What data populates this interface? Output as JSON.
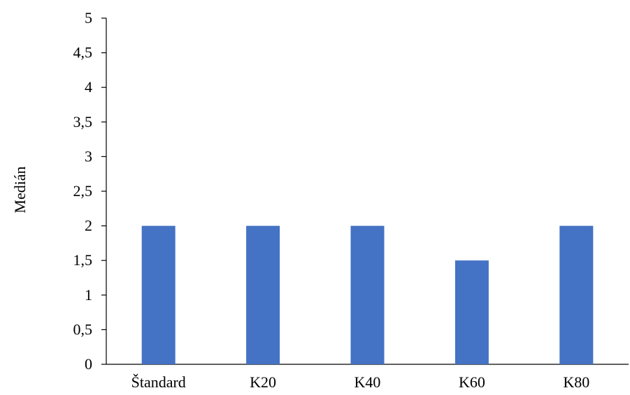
{
  "chart_data": {
    "type": "bar",
    "title": "",
    "xlabel": "",
    "ylabel": "Medián",
    "categories": [
      "Štandard",
      "K20",
      "K40",
      "K60",
      "K80"
    ],
    "values": [
      2,
      2,
      2,
      1.5,
      2
    ],
    "ylim": [
      0,
      5
    ],
    "y_ticks": [
      "0",
      "0,5",
      "1",
      "1,5",
      "2",
      "2,5",
      "3",
      "3,5",
      "4",
      "4,5",
      "5"
    ],
    "grid": false,
    "legend": "none",
    "bar_color": "#4472C4",
    "axis_color": "#000000"
  }
}
